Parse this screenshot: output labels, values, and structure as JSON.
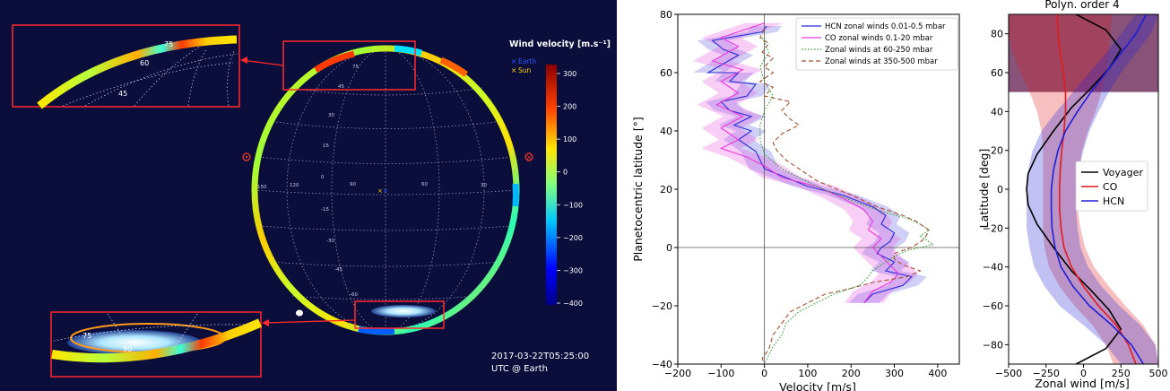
{
  "colors": {
    "panel_bg": "#0b0e3b",
    "inset_frame": "#ff2a2a",
    "hcn": "#2b2bd6",
    "co": "#e83adb",
    "zonal_60_250": "#2ca02c",
    "zonal_350_500": "#a0522d",
    "voyager": "#000000",
    "co_right": "#e31a1c",
    "hcn_right": "#1f1fd6",
    "polar_shade": "#7b3f6a"
  },
  "map_panel": {
    "colorbar_title": "Wind velocity [m.s⁻¹]",
    "colorbar_ticks": [
      "300",
      "200",
      "100",
      "0",
      "−100",
      "−200",
      "−300",
      "−400"
    ],
    "legend": [
      {
        "symbol": "×",
        "label": "Earth",
        "color": "#2a5bff"
      },
      {
        "symbol": "×",
        "label": "Sun",
        "color": "#ffd400"
      }
    ],
    "timestamp_line1": "2017-03-22T05:25:00",
    "timestamp_line2": "UTC @ Earth",
    "inset_top_labels": [
      "75",
      "60",
      "45"
    ],
    "inset_bottom_labels": [
      "75",
      "90"
    ],
    "globe_lat_labels": [
      "75",
      "60",
      "45",
      "30",
      "15",
      "0",
      "-15",
      "-30",
      "-45",
      "-60"
    ],
    "globe_lon_labels": [
      "150",
      "120",
      "90",
      "60",
      "30",
      "0"
    ]
  },
  "chart_data": [
    {
      "type": "line",
      "xlabel": "Velocity [m/s]",
      "ylabel": "Planetocentric latitude [°]",
      "xlim": [
        -200,
        450
      ],
      "ylim": [
        -40,
        80
      ],
      "xticks": [
        -200,
        -100,
        0,
        100,
        200,
        300,
        400
      ],
      "yticks": [
        -40,
        -20,
        0,
        20,
        40,
        60,
        80
      ],
      "legend_position": "upper-right",
      "series": [
        {
          "name": "HCN zonal winds 0.01-0.5 mbar",
          "style": "solid",
          "color": "#2b2bd6",
          "band": 35,
          "points": [
            [
              5,
              76
            ],
            [
              -5,
              74
            ],
            [
              -120,
              71
            ],
            [
              -95,
              68
            ],
            [
              -60,
              66
            ],
            [
              -130,
              60
            ],
            [
              -60,
              60
            ],
            [
              -80,
              57
            ],
            [
              -20,
              56
            ],
            [
              -40,
              52
            ],
            [
              -100,
              50
            ],
            [
              -80,
              47
            ],
            [
              -30,
              45
            ],
            [
              -70,
              42
            ],
            [
              -30,
              40
            ],
            [
              -60,
              37
            ],
            [
              -20,
              33
            ],
            [
              -10,
              30
            ],
            [
              0,
              27
            ],
            [
              50,
              24
            ],
            [
              100,
              21
            ],
            [
              180,
              18
            ],
            [
              250,
              14
            ],
            [
              280,
              11
            ],
            [
              270,
              8
            ],
            [
              300,
              5
            ],
            [
              290,
              2
            ],
            [
              270,
              0
            ],
            [
              260,
              -2
            ],
            [
              300,
              -5
            ],
            [
              280,
              -8
            ],
            [
              340,
              -10
            ],
            [
              320,
              -13
            ],
            [
              250,
              -16
            ],
            [
              230,
              -19
            ]
          ]
        },
        {
          "name": "CO zonal winds 0.1-20 mbar",
          "style": "solid",
          "color": "#e83adb",
          "band": 45,
          "points": [
            [
              0,
              77
            ],
            [
              -40,
              75
            ],
            [
              -100,
              72
            ],
            [
              -60,
              69
            ],
            [
              -120,
              64
            ],
            [
              -50,
              61
            ],
            [
              -100,
              57
            ],
            [
              -60,
              53
            ],
            [
              -110,
              49
            ],
            [
              -50,
              45
            ],
            [
              -100,
              41
            ],
            [
              -60,
              37
            ],
            [
              -100,
              34
            ],
            [
              -40,
              31
            ],
            [
              0,
              28
            ],
            [
              40,
              24
            ],
            [
              120,
              21
            ],
            [
              180,
              17
            ],
            [
              230,
              13
            ],
            [
              250,
              9
            ],
            [
              240,
              6
            ],
            [
              270,
              3
            ],
            [
              250,
              0
            ],
            [
              270,
              -3
            ],
            [
              290,
              -6
            ],
            [
              310,
              -9
            ],
            [
              290,
              -12
            ],
            [
              250,
              -15
            ],
            [
              230,
              -19
            ]
          ]
        },
        {
          "name": "Zonal winds at 60-250 mbar",
          "style": "dotted",
          "color": "#2ca02c",
          "band": 0,
          "points": [
            [
              -5,
              72
            ],
            [
              10,
              67
            ],
            [
              -10,
              62
            ],
            [
              0,
              57
            ],
            [
              20,
              52
            ],
            [
              0,
              47
            ],
            [
              -10,
              42
            ],
            [
              -10,
              37
            ],
            [
              0,
              32
            ],
            [
              40,
              27
            ],
            [
              120,
              21
            ],
            [
              220,
              15
            ],
            [
              280,
              12
            ],
            [
              330,
              10
            ],
            [
              360,
              8
            ],
            [
              380,
              6
            ],
            [
              360,
              4
            ],
            [
              390,
              1
            ],
            [
              330,
              -1
            ],
            [
              300,
              -3
            ],
            [
              270,
              -6
            ],
            [
              250,
              -8
            ],
            [
              240,
              -10
            ],
            [
              220,
              -13
            ],
            [
              160,
              -16
            ],
            [
              120,
              -19
            ],
            [
              80,
              -22
            ],
            [
              50,
              -26
            ],
            [
              40,
              -30
            ],
            [
              20,
              -34
            ],
            [
              10,
              -37
            ],
            [
              0,
              -40
            ]
          ]
        },
        {
          "name": "Zonal winds at 350-500 mbar",
          "style": "dashed",
          "color": "#a0522d",
          "band": 0,
          "points": [
            [
              0,
              75
            ],
            [
              -10,
              72
            ],
            [
              10,
              70
            ],
            [
              -5,
              67
            ],
            [
              20,
              65
            ],
            [
              0,
              62
            ],
            [
              20,
              60
            ],
            [
              -10,
              57
            ],
            [
              20,
              55
            ],
            [
              0,
              52
            ],
            [
              60,
              50
            ],
            [
              40,
              47
            ],
            [
              60,
              44
            ],
            [
              80,
              42
            ],
            [
              40,
              39
            ],
            [
              20,
              36
            ],
            [
              30,
              33
            ],
            [
              50,
              30
            ],
            [
              80,
              27
            ],
            [
              120,
              23
            ],
            [
              200,
              18
            ],
            [
              260,
              14
            ],
            [
              320,
              11
            ],
            [
              350,
              9
            ],
            [
              380,
              6
            ],
            [
              370,
              3
            ],
            [
              340,
              0
            ],
            [
              300,
              -2
            ],
            [
              300,
              -4
            ],
            [
              320,
              -6
            ],
            [
              360,
              -8
            ],
            [
              330,
              -10
            ],
            [
              250,
              -12
            ],
            [
              200,
              -14
            ],
            [
              140,
              -16
            ],
            [
              100,
              -19
            ],
            [
              60,
              -22
            ],
            [
              40,
              -26
            ],
            [
              20,
              -30
            ],
            [
              10,
              -35
            ],
            [
              -5,
              -38
            ],
            [
              0,
              -40
            ]
          ]
        }
      ]
    },
    {
      "type": "line",
      "title": "Polyn. order 4",
      "xlabel": "Zonal wind [m/s]",
      "ylabel": "Latitude [deg]",
      "xlim": [
        -500,
        500
      ],
      "ylim": [
        -90,
        90
      ],
      "xticks": [
        -500,
        -250,
        0,
        250,
        500
      ],
      "yticks": [
        -80,
        -60,
        -40,
        -20,
        0,
        20,
        40,
        60,
        80
      ],
      "shaded_region_lat": [
        50,
        90
      ],
      "legend_position": "center-right",
      "series": [
        {
          "name": "Voyager",
          "color": "#000000",
          "points": [
            [
              -50,
              -90
            ],
            [
              150,
              -82
            ],
            [
              250,
              -72
            ],
            [
              170,
              -62
            ],
            [
              50,
              -52
            ],
            [
              -80,
              -42
            ],
            [
              -200,
              -30
            ],
            [
              -310,
              -18
            ],
            [
              -370,
              -8
            ],
            [
              -380,
              0
            ],
            [
              -370,
              8
            ],
            [
              -310,
              18
            ],
            [
              -200,
              30
            ],
            [
              -80,
              42
            ],
            [
              50,
              52
            ],
            [
              170,
              62
            ],
            [
              250,
              72
            ],
            [
              150,
              82
            ],
            [
              -50,
              90
            ]
          ]
        },
        {
          "name": "CO",
          "color": "#e31a1c",
          "band": [
            [
              -90,
              200,
              500
            ],
            [
              -80,
              150,
              480
            ],
            [
              -70,
              60,
              400
            ],
            [
              -60,
              -60,
              280
            ],
            [
              -50,
              -160,
              170
            ],
            [
              -40,
              -230,
              70
            ],
            [
              -30,
              -260,
              10
            ],
            [
              -20,
              -270,
              -20
            ],
            [
              -10,
              -270,
              -40
            ],
            [
              0,
              -270,
              -40
            ],
            [
              10,
              -270,
              -30
            ],
            [
              20,
              -270,
              -10
            ],
            [
              30,
              -280,
              30
            ],
            [
              40,
              -310,
              80
            ],
            [
              50,
              -360,
              120
            ],
            [
              60,
              -420,
              150
            ],
            [
              70,
              -470,
              170
            ],
            [
              80,
              -500,
              180
            ],
            [
              90,
              -500,
              190
            ]
          ],
          "points": [
            [
              350,
              -90
            ],
            [
              300,
              -80
            ],
            [
              220,
              -70
            ],
            [
              100,
              -60
            ],
            [
              0,
              -50
            ],
            [
              -80,
              -40
            ],
            [
              -130,
              -30
            ],
            [
              -150,
              -20
            ],
            [
              -160,
              -10
            ],
            [
              -160,
              0
            ],
            [
              -155,
              10
            ],
            [
              -145,
              20
            ],
            [
              -130,
              30
            ],
            [
              -120,
              40
            ],
            [
              -120,
              50
            ],
            [
              -135,
              60
            ],
            [
              -155,
              70
            ],
            [
              -170,
              80
            ],
            [
              -175,
              90
            ]
          ]
        },
        {
          "name": "HCN",
          "color": "#1f1fd6",
          "band": [
            [
              -90,
              250,
              500
            ],
            [
              -80,
              150,
              480
            ],
            [
              -70,
              0,
              380
            ],
            [
              -60,
              -160,
              240
            ],
            [
              -50,
              -260,
              120
            ],
            [
              -40,
              -330,
              30
            ],
            [
              -30,
              -360,
              -20
            ],
            [
              -20,
              -380,
              -40
            ],
            [
              -10,
              -380,
              -50
            ],
            [
              0,
              -380,
              -50
            ],
            [
              10,
              -370,
              -30
            ],
            [
              20,
              -340,
              0
            ],
            [
              30,
              -280,
              40
            ],
            [
              40,
              -180,
              100
            ],
            [
              50,
              -70,
              170
            ],
            [
              60,
              40,
              250
            ],
            [
              70,
              150,
              350
            ],
            [
              80,
              250,
              450
            ],
            [
              90,
              350,
              500
            ]
          ],
          "points": [
            [
              400,
              -90
            ],
            [
              320,
              -80
            ],
            [
              190,
              -70
            ],
            [
              40,
              -60
            ],
            [
              -70,
              -50
            ],
            [
              -150,
              -40
            ],
            [
              -190,
              -30
            ],
            [
              -210,
              -20
            ],
            [
              -215,
              -10
            ],
            [
              -215,
              0
            ],
            [
              -200,
              10
            ],
            [
              -170,
              20
            ],
            [
              -120,
              30
            ],
            [
              -40,
              40
            ],
            [
              50,
              50
            ],
            [
              150,
              60
            ],
            [
              250,
              70
            ],
            [
              350,
              80
            ],
            [
              420,
              90
            ]
          ]
        }
      ]
    }
  ]
}
